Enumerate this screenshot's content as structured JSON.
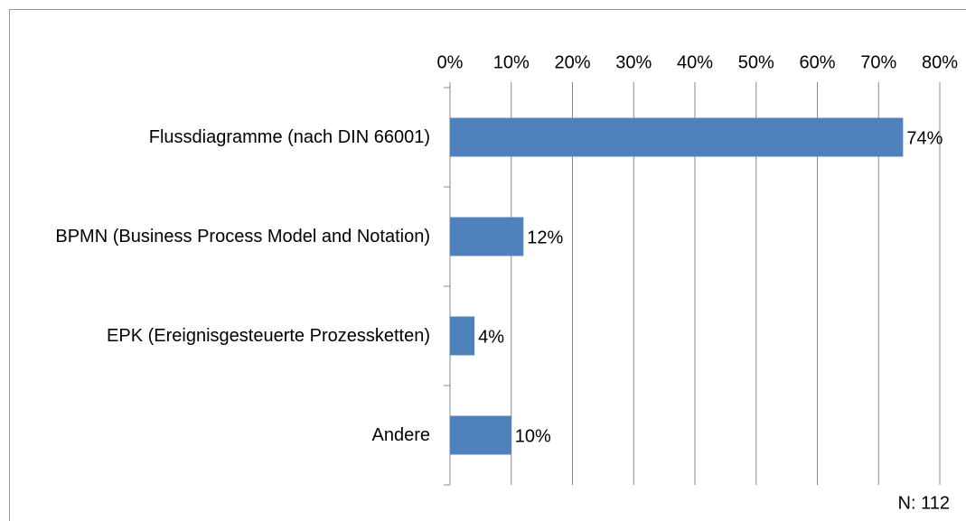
{
  "chart_data": {
    "type": "bar",
    "orientation": "horizontal",
    "categories": [
      "Flussdiagramme (nach DIN 66001)",
      "BPMN (Business Process Model and Notation)",
      "EPK (Ereignisgesteuerte Prozessketten)",
      "Andere"
    ],
    "values": [
      74,
      12,
      4,
      10
    ],
    "value_labels": [
      "74%",
      "12%",
      "4%",
      "10%"
    ],
    "color": "#4f81bd",
    "xlim": [
      0,
      80
    ],
    "xticks": [
      {
        "value": 0,
        "label": "0%"
      },
      {
        "value": 10,
        "label": "10%"
      },
      {
        "value": 20,
        "label": "20%"
      },
      {
        "value": 30,
        "label": "30%"
      },
      {
        "value": 40,
        "label": "40%"
      },
      {
        "value": 50,
        "label": "50%"
      },
      {
        "value": 60,
        "label": "60%"
      },
      {
        "value": 70,
        "label": "70%"
      },
      {
        "value": 80,
        "label": "80%"
      }
    ],
    "grid": true,
    "annotation": "N: 112"
  }
}
